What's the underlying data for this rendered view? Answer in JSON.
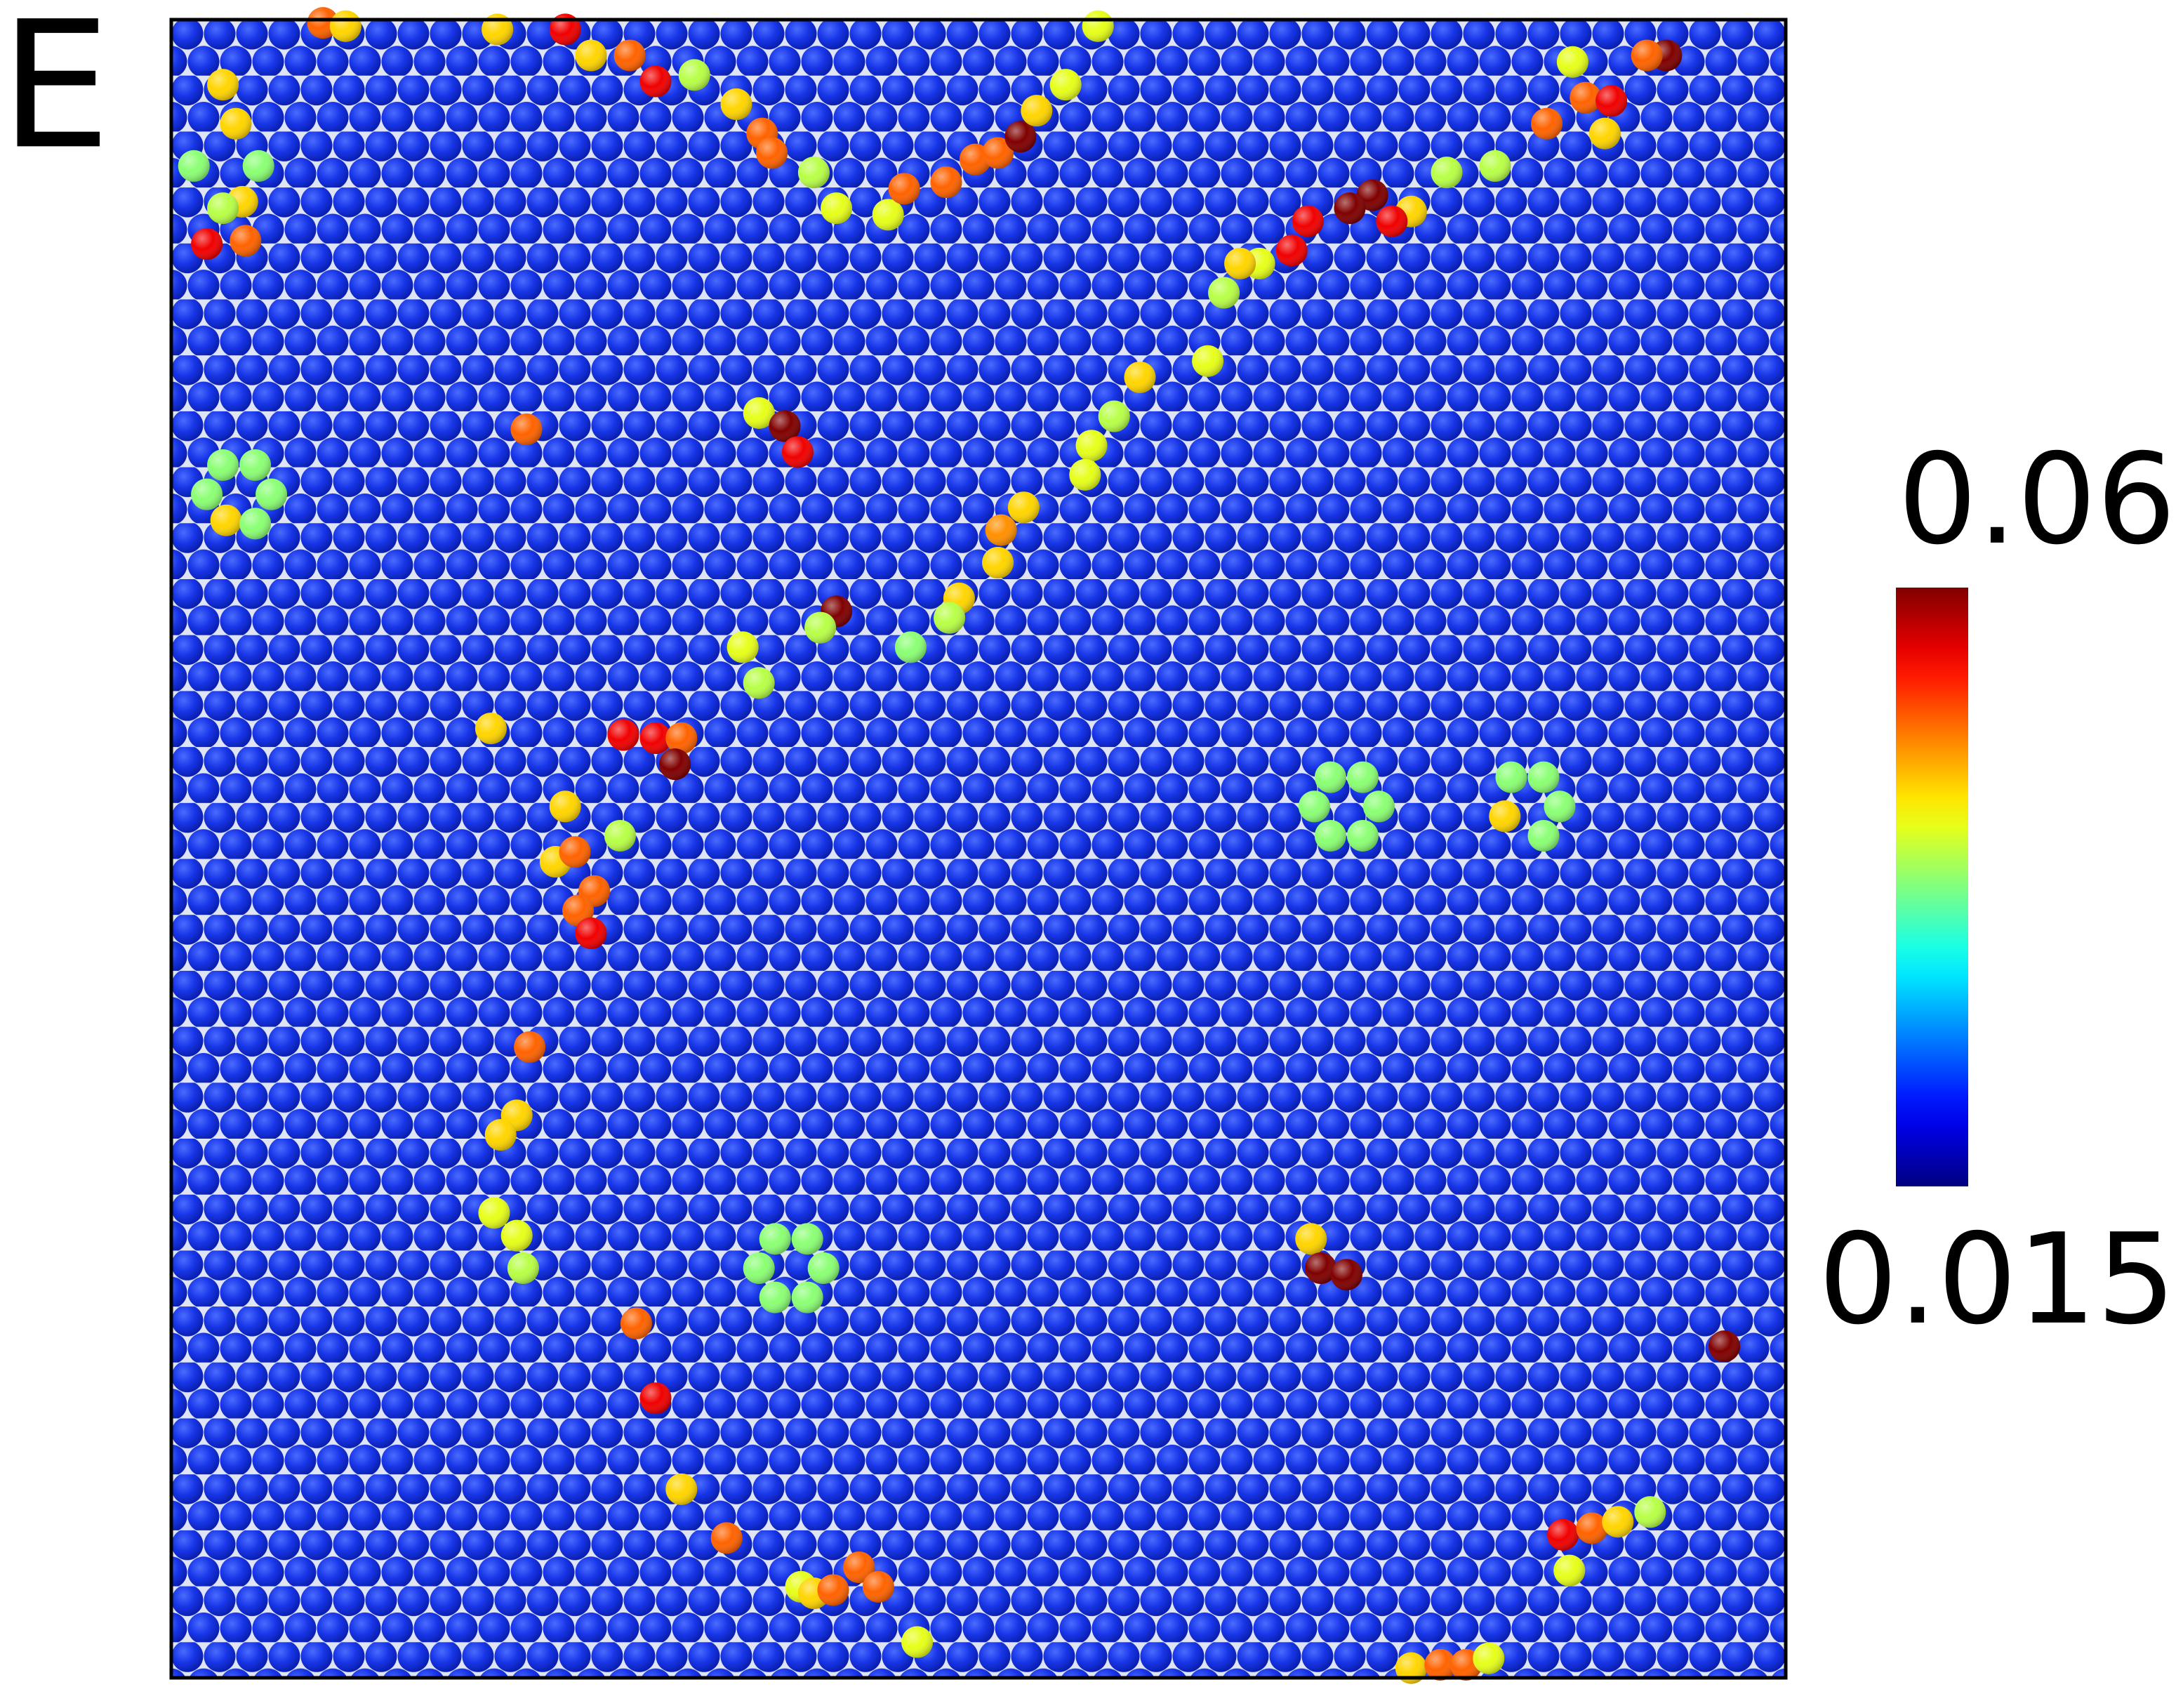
{
  "chart_data": {
    "type": "particle-map",
    "panel_label": "E",
    "xlim": [
      0,
      50
    ],
    "ylim": [
      0,
      51
    ],
    "colormap": "jet",
    "clim": [
      0.015,
      0.06
    ],
    "cticks": [
      0.015,
      0.06
    ],
    "x": [
      4.7,
      5.4,
      1.6,
      2.0,
      2.2,
      1.1,
      2.3,
      2.7,
      0.7,
      1.6,
      10.1,
      12.2,
      13.0,
      14.2,
      15.0,
      16.2,
      17.5,
      18.3,
      18.6,
      19.9,
      20.6,
      22.2,
      22.7,
      24.0,
      24.9,
      25.6,
      26.3,
      26.8,
      27.7,
      28.7,
      46.3,
      45.7,
      43.8,
      44.6,
      44.4,
      42.6,
      43.4,
      41.0,
      39.5,
      38.4,
      37.8,
      37.2,
      36.5,
      35.2,
      34.7,
      33.7,
      33.1,
      32.6,
      32.1,
      30.0,
      29.2,
      28.5,
      28.3,
      26.4,
      25.7,
      25.6,
      24.4,
      24.1,
      22.9,
      20.6,
      20.1,
      11.0,
      18.2,
      19.0,
      19.4,
      17.7,
      18.2,
      9.9,
      14.0,
      15.0,
      15.8,
      15.6,
      12.2,
      11.9,
      12.5,
      13.1,
      12.6,
      13.0,
      13.9,
      11.1,
      10.7,
      10.2,
      10.0,
      10.7,
      10.9,
      14.4,
      15.0,
      15.8,
      17.2,
      19.5,
      19.9,
      20.5,
      21.3,
      21.9,
      23.1,
      38.4,
      39.3,
      40.1,
      40.8,
      43.1,
      44.0,
      44.8,
      43.3,
      45.8,
      1.7,
      41.3,
      35.3,
      35.6,
      36.4,
      48.1,
      35.4,
      37.4,
      35.9,
      36.9,
      35.9,
      36.9,
      18.2,
      20.2,
      18.7,
      19.7,
      18.7,
      19.7,
      1.1,
      3.1,
      1.6,
      2.6,
      2.6,
      43.0,
      42.5,
      41.5,
      42.5
    ],
    "y": [
      50.9,
      50.8,
      49.0,
      47.8,
      45.4,
      44.1,
      44.2,
      46.5,
      46.5,
      45.2,
      50.7,
      50.7,
      49.9,
      49.9,
      49.1,
      49.3,
      48.4,
      47.5,
      46.9,
      46.3,
      45.2,
      45.0,
      45.8,
      46.0,
      46.7,
      46.9,
      47.4,
      48.2,
      49.0,
      50.8,
      49.9,
      49.9,
      48.6,
      48.5,
      47.5,
      47.8,
      49.7,
      46.5,
      46.3,
      45.1,
      44.8,
      45.6,
      45.2,
      44.8,
      43.9,
      43.5,
      43.5,
      42.6,
      40.5,
      40.0,
      38.8,
      37.9,
      37.0,
      36.0,
      35.3,
      34.3,
      33.2,
      32.6,
      31.7,
      32.8,
      32.3,
      38.4,
      38.9,
      38.5,
      37.7,
      31.7,
      30.6,
      29.2,
      29.0,
      28.9,
      28.9,
      28.1,
      26.8,
      25.1,
      25.4,
      24.2,
      23.6,
      22.9,
      25.9,
      19.4,
      17.3,
      16.7,
      14.3,
      13.6,
      12.6,
      10.9,
      8.6,
      5.8,
      4.3,
      2.8,
      2.6,
      2.7,
      3.4,
      2.8,
      1.1,
      0.3,
      0.4,
      0.4,
      0.6,
      4.4,
      4.6,
      4.8,
      3.3,
      5.1,
      35.6,
      26.5,
      13.5,
      12.6,
      12.4,
      10.2,
      26.8,
      26.8,
      27.7,
      27.7,
      25.9,
      25.9,
      12.6,
      12.6,
      13.5,
      13.5,
      11.7,
      11.7,
      36.4,
      36.4,
      37.3,
      37.3,
      35.5,
      26.8,
      27.7,
      27.7,
      25.9
    ],
    "values": [
      0.05,
      0.045,
      0.045,
      0.045,
      0.045,
      0.055,
      0.05,
      0.038,
      0.038,
      0.04,
      0.045,
      0.055,
      0.045,
      0.05,
      0.055,
      0.04,
      0.045,
      0.05,
      0.05,
      0.04,
      0.042,
      0.042,
      0.05,
      0.05,
      0.05,
      0.05,
      0.06,
      0.045,
      0.042,
      0.042,
      0.06,
      0.05,
      0.05,
      0.055,
      0.045,
      0.05,
      0.042,
      0.04,
      0.04,
      0.045,
      0.055,
      0.06,
      0.06,
      0.055,
      0.055,
      0.042,
      0.045,
      0.04,
      0.042,
      0.045,
      0.04,
      0.042,
      0.042,
      0.045,
      0.048,
      0.045,
      0.045,
      0.04,
      0.038,
      0.06,
      0.04,
      0.05,
      0.042,
      0.06,
      0.055,
      0.042,
      0.04,
      0.045,
      0.055,
      0.055,
      0.05,
      0.06,
      0.045,
      0.045,
      0.05,
      0.05,
      0.05,
      0.055,
      0.04,
      0.05,
      0.045,
      0.045,
      0.042,
      0.042,
      0.04,
      0.05,
      0.055,
      0.045,
      0.05,
      0.042,
      0.045,
      0.05,
      0.05,
      0.05,
      0.042,
      0.045,
      0.05,
      0.05,
      0.042,
      0.055,
      0.05,
      0.045,
      0.042,
      0.04,
      0.045,
      0.045,
      0.045,
      0.06,
      0.06,
      0.06,
      0.038,
      0.038,
      0.038,
      0.038,
      0.038,
      0.038,
      0.038,
      0.038,
      0.038,
      0.038,
      0.038,
      0.038,
      0.038,
      0.038,
      0.038,
      0.038,
      0.038,
      0.038,
      0.038,
      0.038,
      0.038
    ]
  }
}
